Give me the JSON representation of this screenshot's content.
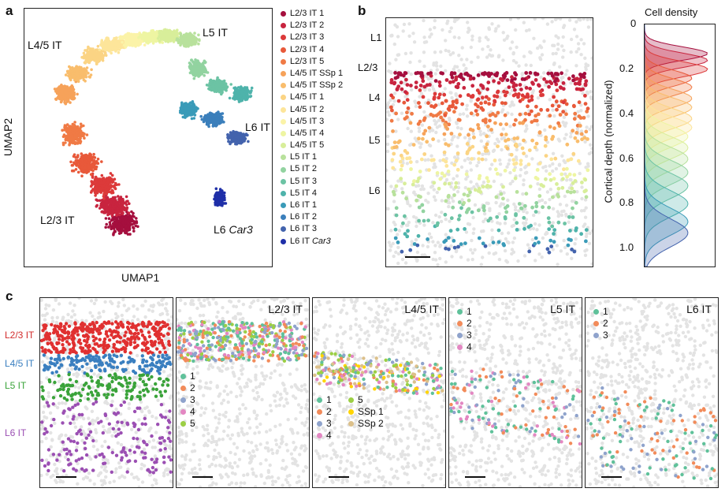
{
  "panel_a": {
    "letter": "a",
    "xlabel": "UMAP1",
    "ylabel": "UMAP2",
    "cluster_labels": {
      "l45": "L4/5 IT",
      "l5": "L5 IT",
      "l6": "L6 IT",
      "l23": "L2/3 IT",
      "car3_prefix": "L6 ",
      "car3_gene": "Car3"
    },
    "legend": [
      {
        "label": "L2/3 IT 1",
        "color": "#a50f3e"
      },
      {
        "label": "L2/3 IT 2",
        "color": "#c8243f"
      },
      {
        "label": "L2/3 IT 3",
        "color": "#dc3a3a"
      },
      {
        "label": "L2/3 IT 4",
        "color": "#e8593a"
      },
      {
        "label": "L2/3 IT 5",
        "color": "#f07a45"
      },
      {
        "label": "L4/5 IT SSp 1",
        "color": "#f6a25a"
      },
      {
        "label": "L4/5 IT SSp 2",
        "color": "#f9bd6c"
      },
      {
        "label": "L4/5 IT 1",
        "color": "#fbd484"
      },
      {
        "label": "L4/5 IT 2",
        "color": "#fde59a"
      },
      {
        "label": "L4/5 IT 3",
        "color": "#fbf3a8"
      },
      {
        "label": "L4/5 IT 4",
        "color": "#eef5a2"
      },
      {
        "label": "L4/5 IT 5",
        "color": "#d8ee9a"
      },
      {
        "label": "L5 IT 1",
        "color": "#b8e19c"
      },
      {
        "label": "L5 IT 2",
        "color": "#92d3a0"
      },
      {
        "label": "L5 IT 3",
        "color": "#6cc3a4"
      },
      {
        "label": "L5 IT 4",
        "color": "#4eb3ab"
      },
      {
        "label": "L6 IT 1",
        "color": "#3a9bb8"
      },
      {
        "label": "L6 IT 2",
        "color": "#3b7fbb"
      },
      {
        "label": "L6 IT 3",
        "color": "#4363ad"
      },
      {
        "label_prefix": "L6 IT ",
        "label_italic": "Car3",
        "color": "#1f2fa8"
      }
    ]
  },
  "panel_b": {
    "letter": "b",
    "layers": [
      "L1",
      "L2/3",
      "L4",
      "L5",
      "L6"
    ],
    "density_title": "Cell density",
    "density_ylabel": "Cortical depth (normalized)",
    "density_ticks": [
      "0",
      "0.2",
      "0.4",
      "0.6",
      "0.8",
      "1.0"
    ],
    "density_ylim": [
      0,
      1.08
    ],
    "density_peaks": [
      0.13,
      0.16,
      0.2,
      0.24,
      0.28,
      0.33,
      0.37,
      0.42,
      0.46,
      0.5,
      0.55,
      0.6,
      0.66,
      0.72,
      0.8,
      0.88,
      0.93
    ],
    "density_colors": [
      "#a50f3e",
      "#c8243f",
      "#dc3a3a",
      "#e8593a",
      "#f07a45",
      "#f6a25a",
      "#f9bd6c",
      "#fbd484",
      "#fde59a",
      "#eef5a2",
      "#d8ee9a",
      "#b8e19c",
      "#92d3a0",
      "#6cc3a4",
      "#4eb3ab",
      "#3a9bb8",
      "#4363ad"
    ]
  },
  "panel_c": {
    "letter": "c",
    "left_labels": [
      {
        "text": "L2/3 IT",
        "color": "#d22b2b"
      },
      {
        "text": "L4/5 IT",
        "color": "#3a7fc0"
      },
      {
        "text": "L5 IT",
        "color": "#3aa33a"
      },
      {
        "text": "L6 IT",
        "color": "#9b4fb3"
      }
    ],
    "subpanels": [
      {
        "title": "",
        "legend": []
      },
      {
        "title": "L2/3 IT",
        "legend": [
          {
            "label": "1",
            "color": "#5fc19a"
          },
          {
            "label": "2",
            "color": "#f28b5a"
          },
          {
            "label": "3",
            "color": "#8fa3cc"
          },
          {
            "label": "4",
            "color": "#e387c2"
          },
          {
            "label": "5",
            "color": "#9ccf45"
          }
        ]
      },
      {
        "title": "L4/5 IT",
        "legend": [
          {
            "label": "1",
            "color": "#5fc19a"
          },
          {
            "label": "2",
            "color": "#f28b5a"
          },
          {
            "label": "3",
            "color": "#8fa3cc"
          },
          {
            "label": "4",
            "color": "#e387c2"
          },
          {
            "label": "5",
            "color": "#9ccf45"
          },
          {
            "label": "SSp 1",
            "color": "#ffd400"
          },
          {
            "label": "SSp 2",
            "color": "#dcc08a"
          }
        ]
      },
      {
        "title": "L5 IT",
        "legend": [
          {
            "label": "1",
            "color": "#5fc19a"
          },
          {
            "label": "2",
            "color": "#f28b5a"
          },
          {
            "label": "3",
            "color": "#8fa3cc"
          },
          {
            "label": "4",
            "color": "#e387c2"
          }
        ]
      },
      {
        "title": "L6 IT",
        "legend": [
          {
            "label": "1",
            "color": "#5fc19a"
          },
          {
            "label": "2",
            "color": "#f28b5a"
          },
          {
            "label": "3",
            "color": "#8fa3cc"
          }
        ]
      }
    ]
  }
}
